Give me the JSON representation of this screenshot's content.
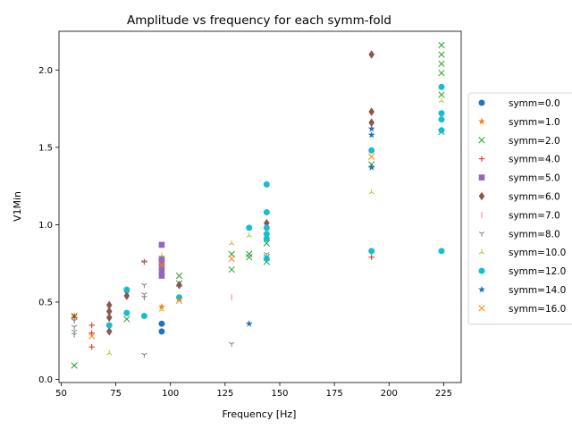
{
  "chart_data": {
    "type": "scatter",
    "title": "Amplitude vs frequency for each symm-fold",
    "xlabel": "Frequency [Hz]",
    "ylabel": "V1Min",
    "xlim": [
      49,
      233
    ],
    "ylim": [
      -0.02,
      2.25
    ],
    "xticks": [
      50,
      75,
      100,
      125,
      150,
      175,
      200,
      225
    ],
    "yticks": [
      0.0,
      0.5,
      1.0,
      1.5,
      2.0
    ],
    "xtick_labels": [
      "50",
      "75",
      "100",
      "125",
      "150",
      "175",
      "200",
      "225"
    ],
    "ytick_labels": [
      "0.0",
      "0.5",
      "1.0",
      "1.5",
      "2.0"
    ],
    "grid": false,
    "legend_position": "right-outside",
    "series": [
      {
        "name": "symm=0.0",
        "marker": "circle",
        "color": "#1f77b4",
        "points": [
          [
            96,
            0.36
          ],
          [
            96,
            0.31
          ]
        ]
      },
      {
        "name": "symm=1.0",
        "marker": "star",
        "color": "#ff7f0e",
        "points": [
          [
            56,
            0.41
          ],
          [
            96,
            0.47
          ],
          [
            104,
            0.52
          ]
        ]
      },
      {
        "name": "symm=2.0",
        "marker": "x",
        "color": "#2ca02c",
        "points": [
          [
            56,
            0.09
          ],
          [
            56,
            0.41
          ],
          [
            80,
            0.39
          ],
          [
            104,
            0.67
          ],
          [
            104,
            0.62
          ],
          [
            128,
            0.81
          ],
          [
            128,
            0.71
          ],
          [
            136,
            0.81
          ],
          [
            136,
            0.79
          ],
          [
            144,
            0.88
          ],
          [
            144,
            0.79
          ],
          [
            144,
            0.76
          ],
          [
            192,
            1.39
          ],
          [
            224,
            2.16
          ],
          [
            224,
            2.1
          ],
          [
            224,
            2.04
          ],
          [
            224,
            1.98
          ],
          [
            224,
            1.84
          ],
          [
            224,
            1.6
          ]
        ]
      },
      {
        "name": "symm=4.0",
        "marker": "plus",
        "color": "#d62728",
        "points": [
          [
            56,
            0.4
          ],
          [
            64,
            0.35
          ],
          [
            64,
            0.3
          ],
          [
            64,
            0.21
          ],
          [
            88,
            0.76
          ],
          [
            192,
            0.79
          ]
        ]
      },
      {
        "name": "symm=5.0",
        "marker": "square",
        "color": "#9467bd",
        "points": [
          [
            96,
            0.87
          ],
          [
            96,
            0.78
          ],
          [
            96,
            0.76
          ],
          [
            96,
            0.73
          ],
          [
            96,
            0.7
          ],
          [
            96,
            0.67
          ]
        ]
      },
      {
        "name": "symm=6.0",
        "marker": "diamond",
        "color": "#8c564b",
        "points": [
          [
            72,
            0.48
          ],
          [
            72,
            0.44
          ],
          [
            72,
            0.4
          ],
          [
            72,
            0.31
          ],
          [
            80,
            0.57
          ],
          [
            80,
            0.54
          ],
          [
            104,
            0.61
          ],
          [
            144,
            1.01
          ],
          [
            192,
            2.1
          ],
          [
            192,
            1.73
          ],
          [
            192,
            1.66
          ]
        ]
      },
      {
        "name": "symm=7.0",
        "marker": "vline",
        "color": "#e377c2",
        "points": [
          [
            128,
            0.53
          ]
        ]
      },
      {
        "name": "symm=8.0",
        "marker": "tri_down",
        "color": "#7f7f7f",
        "points": [
          [
            56,
            0.38
          ],
          [
            56,
            0.34
          ],
          [
            56,
            0.31
          ],
          [
            56,
            0.29
          ],
          [
            88,
            0.76
          ],
          [
            88,
            0.61
          ],
          [
            88,
            0.55
          ],
          [
            88,
            0.53
          ],
          [
            88,
            0.16
          ],
          [
            128,
            0.23
          ],
          [
            144,
            0.81
          ]
        ]
      },
      {
        "name": "symm=10.0",
        "marker": "tri_up",
        "color": "#bcbd22",
        "points": [
          [
            72,
            0.17
          ],
          [
            96,
            0.8
          ],
          [
            96,
            0.45
          ],
          [
            128,
            0.88
          ],
          [
            136,
            0.93
          ],
          [
            192,
            1.21
          ],
          [
            224,
            1.8
          ]
        ]
      },
      {
        "name": "symm=12.0",
        "marker": "circle",
        "color": "#17becf",
        "points": [
          [
            72,
            0.35
          ],
          [
            80,
            0.58
          ],
          [
            80,
            0.43
          ],
          [
            88,
            0.41
          ],
          [
            104,
            0.53
          ],
          [
            136,
            0.98
          ],
          [
            144,
            1.26
          ],
          [
            144,
            1.08
          ],
          [
            144,
            0.98
          ],
          [
            144,
            0.94
          ],
          [
            144,
            0.91
          ],
          [
            144,
            0.78
          ],
          [
            192,
            1.48
          ],
          [
            192,
            0.83
          ],
          [
            224,
            1.89
          ],
          [
            224,
            1.72
          ],
          [
            224,
            1.68
          ],
          [
            224,
            1.61
          ],
          [
            224,
            0.83
          ]
        ]
      },
      {
        "name": "symm=14.0",
        "marker": "star",
        "color": "#1f77b4",
        "points": [
          [
            136,
            0.36
          ],
          [
            192,
            1.62
          ],
          [
            192,
            1.58
          ],
          [
            192,
            1.37
          ]
        ]
      },
      {
        "name": "symm=16.0",
        "marker": "x",
        "color": "#ff7f0e",
        "points": [
          [
            64,
            0.28
          ],
          [
            96,
            0.74
          ],
          [
            104,
            0.51
          ],
          [
            128,
            0.78
          ],
          [
            192,
            1.44
          ]
        ]
      }
    ]
  }
}
